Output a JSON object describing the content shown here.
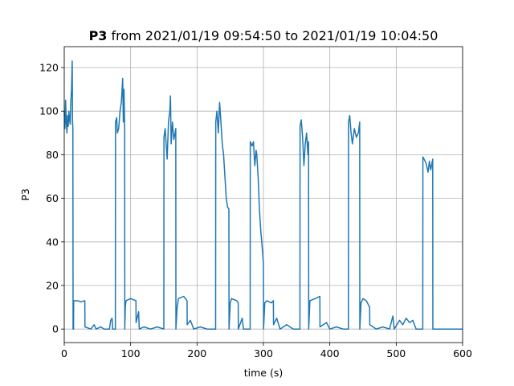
{
  "chart_data": {
    "type": "line",
    "title": [
      "P3",
      "from 2021/01/19 09:54:50 to 2021/01/19 10:04:50"
    ],
    "x_label": "time (s)",
    "y_label": "P3",
    "xlim": [
      0,
      600
    ],
    "ylim": [
      -6.2,
      129.6
    ],
    "xticks": [
      0,
      100,
      200,
      300,
      400,
      500,
      600
    ],
    "yticks": [
      0,
      20,
      40,
      60,
      80,
      100,
      120
    ],
    "grid": true,
    "series": [
      {
        "name": "P3",
        "color": "#1f77b4",
        "x": [
          0,
          1,
          2,
          3,
          4,
          5,
          6,
          7,
          8,
          9,
          10,
          11,
          12,
          12.5,
          13,
          13.3,
          14,
          14.2,
          20,
          25,
          31,
          31.2,
          40,
          45,
          48,
          55,
          60,
          68,
          70,
          72,
          73,
          77,
          77.2,
          79,
          80,
          82,
          84,
          86,
          88,
          89,
          90,
          91,
          91.2,
          92,
          93,
          100,
          108,
          108.2,
          112,
          113,
          120,
          130,
          140,
          150,
          150.2,
          152,
          155,
          157,
          159,
          160,
          161,
          163,
          165,
          167,
          168,
          168.2,
          170,
          172,
          180,
          185,
          185.2,
          190,
          195,
          205,
          215,
          228,
          228.2,
          230,
          232,
          234,
          236,
          238,
          240,
          242,
          244,
          246,
          248,
          248.2,
          250,
          252,
          260,
          262,
          262.2,
          268,
          270,
          280,
          280.2,
          283,
          285,
          287,
          289,
          290,
          292,
          294,
          296,
          298,
          300,
          300.2,
          302,
          305,
          312,
          315,
          315.2,
          320,
          325,
          335,
          345,
          355,
          355.2,
          357,
          359,
          361,
          363,
          365,
          367,
          368,
          368.2,
          370,
          378,
          385,
          385.2,
          395,
          400,
          410,
          420,
          428,
          428.2,
          430,
          432,
          434,
          437,
          440,
          443,
          445,
          445.2,
          447,
          450,
          455,
          460,
          460.2,
          470,
          480,
          490,
          495,
          497,
          505,
          510,
          515,
          520,
          525,
          530,
          540,
          540.2,
          542,
          545,
          548,
          550,
          552,
          555,
          555.2,
          600
        ],
        "values": [
          100,
          92,
          105,
          95,
          90,
          98,
          93,
          100,
          96,
          94,
          105,
          110,
          123,
          95,
          92,
          0,
          0,
          13,
          13,
          12.5,
          13,
          1,
          0,
          2,
          0,
          1,
          0,
          0,
          4,
          5,
          0,
          0,
          95,
          97,
          90,
          92,
          100,
          104,
          115,
          95,
          110,
          92,
          0,
          10,
          13,
          14,
          13,
          3,
          8,
          0,
          1,
          0,
          1,
          0,
          88,
          92,
          78,
          95,
          100,
          107,
          85,
          95,
          87,
          90,
          92,
          0,
          10,
          14,
          15,
          13,
          2,
          4,
          0,
          1,
          0,
          0,
          95,
          100,
          90,
          104,
          95,
          85,
          80,
          70,
          60,
          56,
          55,
          0,
          12,
          14,
          13,
          12,
          0,
          5,
          0,
          0,
          86,
          84,
          86,
          75,
          82,
          80,
          70,
          55,
          45,
          38,
          30,
          0,
          12,
          13,
          12,
          13,
          2,
          5,
          0,
          2,
          0,
          0,
          93,
          96,
          88,
          75,
          85,
          90,
          80,
          86,
          0,
          13,
          14,
          15,
          1,
          3,
          0,
          1,
          0,
          0,
          95,
          98,
          90,
          85,
          92,
          88,
          90,
          95,
          0,
          12,
          14,
          13,
          10,
          2,
          0,
          1,
          0,
          6,
          0,
          4,
          2,
          5,
          3,
          4,
          0,
          0,
          79,
          78,
          76,
          72,
          77,
          73,
          78,
          0,
          0
        ]
      }
    ]
  }
}
